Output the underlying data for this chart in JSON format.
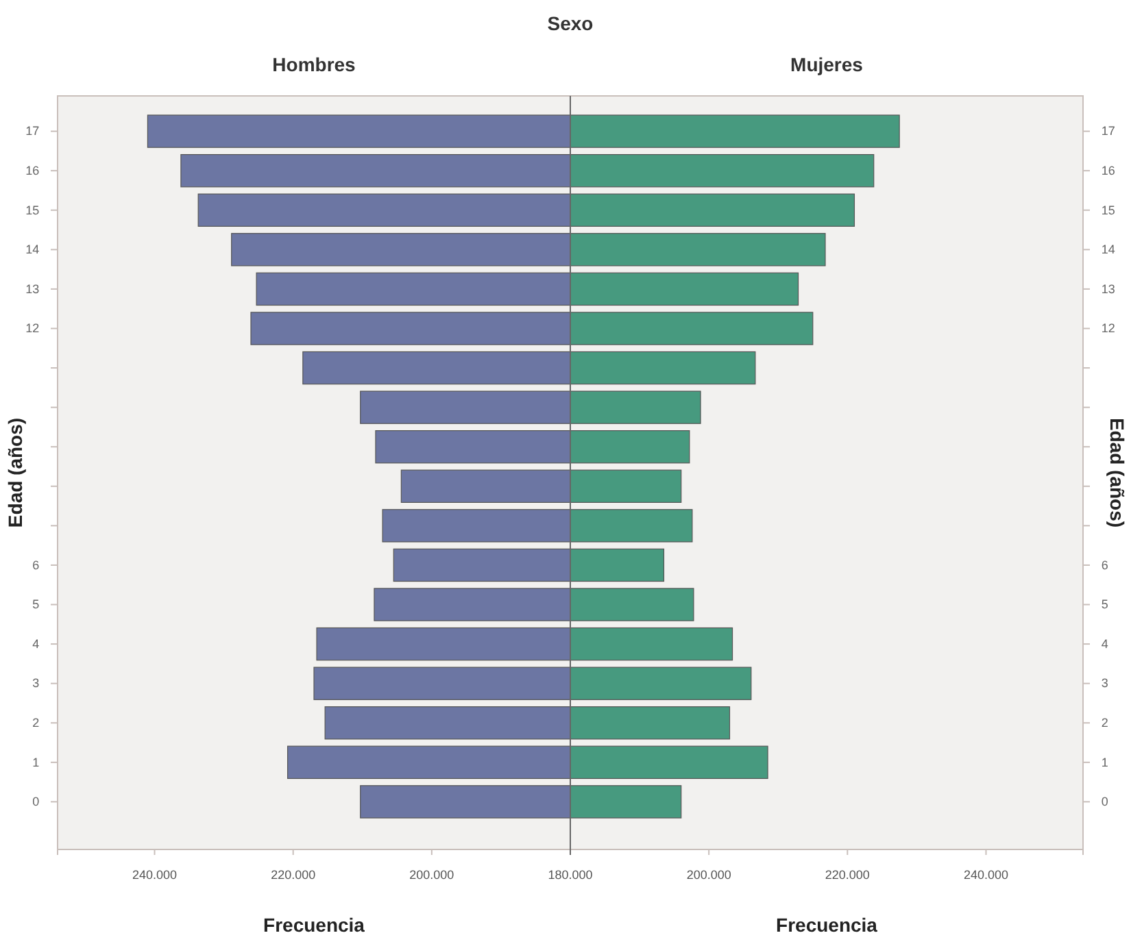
{
  "chart_data": [
    {
      "type": "bar",
      "orientation": "horizontal",
      "title": "Hombres",
      "annotations": [
        "Sexo"
      ],
      "xlabel": "Frecuencia",
      "ylabel": "Edad (años)",
      "categories": [
        "17",
        "16",
        "15",
        "14",
        "13",
        "12",
        null,
        null,
        null,
        null,
        null,
        "6",
        "5",
        "4",
        "3",
        "2",
        "1",
        "0"
      ],
      "values": [
        241000,
        236200,
        233700,
        228900,
        225300,
        226100,
        218600,
        210300,
        208100,
        204400,
        207100,
        205500,
        208300,
        216600,
        217000,
        215400,
        220800,
        210300
      ],
      "color": "#6c76a3",
      "xlim": [
        254000,
        180000
      ],
      "xticks": [
        {
          "value": 240000,
          "label": "240.000"
        },
        {
          "value": 220000,
          "label": "220.000"
        },
        {
          "value": 200000,
          "label": "200.000"
        },
        {
          "value": 180000,
          "label": "180.000"
        }
      ]
    },
    {
      "type": "bar",
      "orientation": "horizontal",
      "title": "Mujeres",
      "xlabel": "Frecuencia",
      "ylabel": "Edad (años)",
      "categories": [
        "17",
        "16",
        "15",
        "14",
        "13",
        "12",
        null,
        null,
        null,
        null,
        null,
        "6",
        "5",
        "4",
        "3",
        "2",
        "1",
        "0"
      ],
      "values": [
        227500,
        223800,
        221000,
        216800,
        212900,
        215000,
        206700,
        198800,
        197200,
        196000,
        197600,
        193500,
        197800,
        203400,
        206100,
        203000,
        208500,
        196000
      ],
      "color": "#479a7f",
      "xlim": [
        180000,
        254000
      ],
      "xticks": [
        {
          "value": 200000,
          "label": "200.000"
        },
        {
          "value": 220000,
          "label": "220.000"
        },
        {
          "value": 240000,
          "label": "240.000"
        }
      ]
    }
  ]
}
